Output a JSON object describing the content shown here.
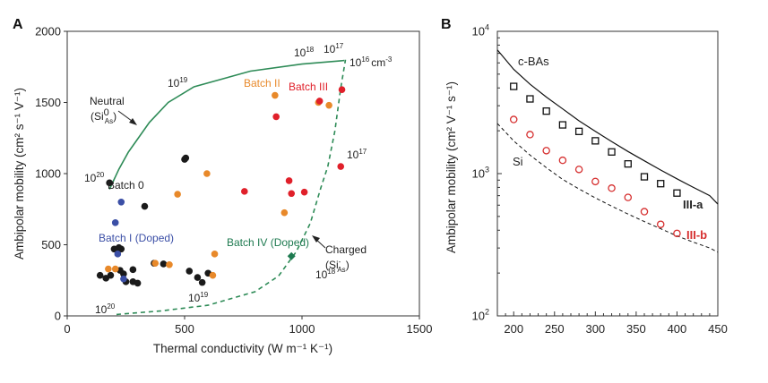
{
  "panel_labels": {
    "a": "A",
    "b": "B"
  },
  "chart_data": [
    {
      "type": "scatter",
      "panel": "A",
      "xlabel": "Thermal conductivity (W m⁻¹ K⁻¹)",
      "ylabel": "Ambipolar mobility (cm² s⁻¹ V⁻¹)",
      "xlim": [
        0,
        1500
      ],
      "ylim": [
        0,
        2000
      ],
      "xticks": [
        "0",
        "500",
        "1000",
        "1500"
      ],
      "yticks": [
        "0",
        "500",
        "1000",
        "1500",
        "2000"
      ],
      "series": [
        {
          "name": "Batch 0",
          "color": "#1a1a1a",
          "marker": "circle",
          "points": [
            [
              180,
              935
            ],
            [
              200,
              470
            ],
            [
              220,
              480
            ],
            [
              230,
              470
            ],
            [
              140,
              285
            ],
            [
              165,
              265
            ],
            [
              185,
              285
            ],
            [
              225,
              320
            ],
            [
              240,
              295
            ],
            [
              250,
              240
            ],
            [
              280,
              325
            ],
            [
              280,
              240
            ],
            [
              300,
              230
            ],
            [
              330,
              770
            ],
            [
              370,
              370
            ],
            [
              410,
              365
            ],
            [
              500,
              1100
            ],
            [
              505,
              1110
            ],
            [
              520,
              315
            ],
            [
              555,
              270
            ],
            [
              575,
              235
            ],
            [
              600,
              300
            ]
          ]
        },
        {
          "name": "Batch I (Doped)",
          "color": "#3b4fa6",
          "marker": "circle",
          "points": [
            [
              230,
              800
            ],
            [
              205,
              655
            ],
            [
              215,
              435
            ],
            [
              240,
              260
            ]
          ]
        },
        {
          "name": "Batch II",
          "color": "#e8892a",
          "marker": "circle",
          "points": [
            [
              175,
              330
            ],
            [
              205,
              330
            ],
            [
              375,
              370
            ],
            [
              435,
              360
            ],
            [
              470,
              855
            ],
            [
              595,
              1000
            ],
            [
              620,
              285
            ],
            [
              628,
              435
            ],
            [
              885,
              1550
            ],
            [
              925,
              725
            ],
            [
              1070,
              1500
            ],
            [
              1115,
              1480
            ]
          ]
        },
        {
          "name": "Batch III",
          "color": "#e0202a",
          "marker": "circle",
          "points": [
            [
              755,
              875
            ],
            [
              890,
              1400
            ],
            [
              945,
              950
            ],
            [
              955,
              860
            ],
            [
              1010,
              870
            ],
            [
              1075,
              1510
            ],
            [
              1165,
              1050
            ],
            [
              1170,
              1590
            ]
          ]
        },
        {
          "name": "Batch IV (Doped)",
          "color": "#1e7a50",
          "marker": "diamond",
          "points": [
            [
              955,
              420
            ]
          ]
        }
      ],
      "curves": [
        {
          "name": "Neutral",
          "style": "solid",
          "color": "#2e8b57",
          "points": [
            [
              180,
              890
            ],
            [
              220,
              1030
            ],
            [
              260,
              1150
            ],
            [
              290,
              1220
            ],
            [
              350,
              1360
            ],
            [
              430,
              1500
            ],
            [
              540,
              1610
            ],
            [
              780,
              1720
            ],
            [
              1000,
              1770
            ],
            [
              1180,
              1795
            ]
          ]
        },
        {
          "name": "Charged",
          "style": "dashed",
          "color": "#2e8b57",
          "points": [
            [
              210,
              10
            ],
            [
              400,
              35
            ],
            [
              600,
              75
            ],
            [
              800,
              170
            ],
            [
              900,
              280
            ],
            [
              975,
              450
            ],
            [
              1035,
              650
            ],
            [
              1080,
              900
            ],
            [
              1110,
              1050
            ],
            [
              1140,
              1300
            ],
            [
              1165,
              1600
            ],
            [
              1185,
              1800
            ]
          ]
        }
      ],
      "labels": {
        "batch_0": "Batch 0",
        "batch_i": "Batch I (Doped)",
        "batch_ii": "Batch II",
        "batch_iii": "Batch III",
        "batch_iv": "Batch IV (Doped)",
        "neutral_line1": "Neutral",
        "neutral_line2": "(Si",
        "neutral_sup": "0",
        "neutral_sub": "As",
        "neutral_close": ")",
        "charged_line1": "Charged",
        "charged_line2": "(Si",
        "charged_sup": "-",
        "charged_sub": "As",
        "charged_close": ")",
        "cm3_unit": "cm",
        "cm3_exp": "-3"
      },
      "doping_labels": [
        {
          "base": "10",
          "exp": "20"
        },
        {
          "base": "10",
          "exp": "19"
        },
        {
          "base": "10",
          "exp": "18"
        },
        {
          "base": "10",
          "exp": "17"
        },
        {
          "base": "10",
          "exp": "16"
        },
        {
          "base": "10",
          "exp": "17"
        },
        {
          "base": "10",
          "exp": "18"
        },
        {
          "base": "10",
          "exp": "19"
        },
        {
          "base": "10",
          "exp": "20"
        }
      ]
    },
    {
      "type": "line",
      "panel": "B",
      "yscale": "log",
      "xlabel": "",
      "ylabel": "Ambipolar mobility (cm² V⁻¹ s⁻¹)",
      "xlim": [
        180,
        450
      ],
      "ylim": [
        100,
        10000
      ],
      "xticks": [
        "200",
        "250",
        "300",
        "350",
        "400",
        "450"
      ],
      "yticks": [
        {
          "base": "10",
          "exp": "2"
        },
        {
          "base": "10",
          "exp": "3"
        },
        {
          "base": "10",
          "exp": "4"
        }
      ],
      "curves": [
        {
          "name": "c-BAs",
          "style": "solid",
          "color": "#111111",
          "x": [
            180,
            200,
            220,
            240,
            260,
            280,
            300,
            320,
            340,
            360,
            380,
            400,
            420,
            440,
            450
          ],
          "y": [
            7400,
            5400,
            4250,
            3450,
            2850,
            2350,
            1980,
            1680,
            1430,
            1230,
            1060,
            920,
            800,
            700,
            610
          ]
        },
        {
          "name": "Si",
          "style": "dashed",
          "color": "#111111",
          "x": [
            180,
            200,
            220,
            240,
            260,
            280,
            300,
            320,
            340,
            360,
            380,
            400,
            420,
            440,
            450
          ],
          "y": [
            2250,
            1700,
            1350,
            1100,
            910,
            780,
            675,
            590,
            520,
            460,
            410,
            365,
            330,
            300,
            280
          ]
        }
      ],
      "series": [
        {
          "name": "III-a",
          "color": "#111111",
          "marker": "square",
          "x": [
            200,
            220,
            240,
            260,
            280,
            300,
            320,
            340,
            360,
            380,
            400
          ],
          "y": [
            4100,
            3350,
            2750,
            2200,
            1980,
            1700,
            1420,
            1170,
            950,
            850,
            730
          ]
        },
        {
          "name": "III-b",
          "color": "#d63030",
          "marker": "open-circle",
          "x": [
            200,
            220,
            240,
            260,
            280,
            300,
            320,
            340,
            360,
            380,
            400
          ],
          "y": [
            2400,
            1880,
            1450,
            1240,
            1070,
            880,
            790,
            680,
            540,
            440,
            380
          ]
        }
      ],
      "labels": {
        "cbas": "c-BAs",
        "si": "Si",
        "iiia": "III-a",
        "iiib": "III-b"
      }
    }
  ]
}
